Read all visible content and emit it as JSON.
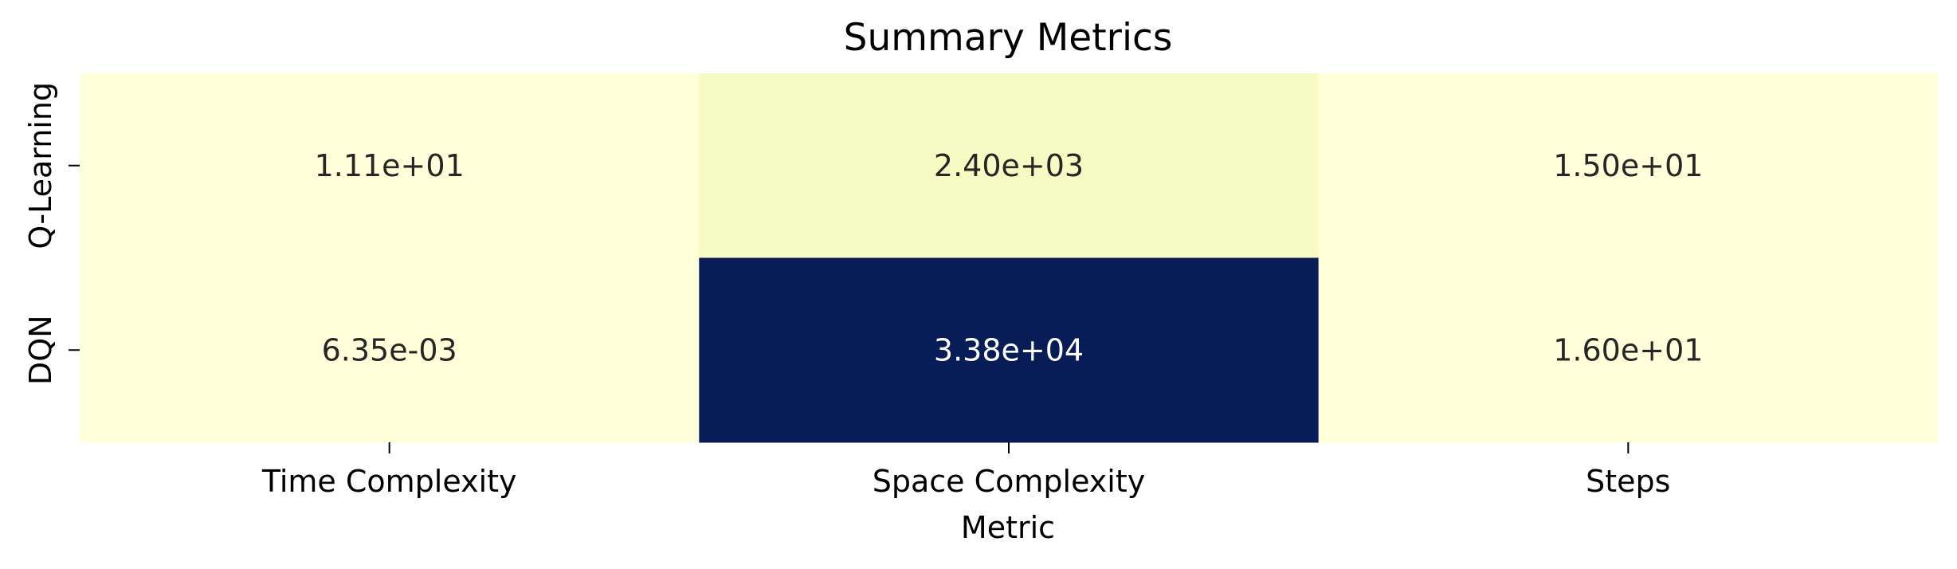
{
  "chart_data": {
    "type": "heatmap",
    "title": "Summary Metrics",
    "xlabel": "Metric",
    "ylabel": "",
    "x_categories": [
      "Time Complexity",
      "Space Complexity",
      "Steps"
    ],
    "y_categories": [
      "Q-Learning",
      "DQN"
    ],
    "values": [
      [
        11.1,
        2400,
        15.0
      ],
      [
        0.00635,
        33800,
        16.0
      ]
    ],
    "value_labels": [
      [
        "1.11e+01",
        "2.40e+03",
        "1.50e+01"
      ],
      [
        "6.35e-03",
        "3.38e+04",
        "1.60e+01"
      ]
    ],
    "colormap": "YlGnBu",
    "colorbar": false,
    "colors": {
      "low": "#ffffd9",
      "high": "#081d58",
      "text_dark": "#262626",
      "text_light": "#ffffff"
    }
  }
}
